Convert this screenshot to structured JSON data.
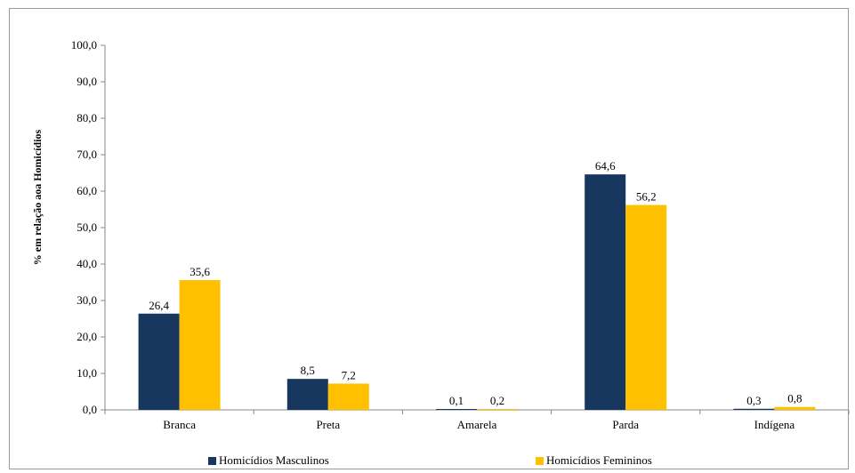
{
  "chart_data": {
    "type": "bar",
    "categories": [
      "Branca",
      "Preta",
      "Amarela",
      "Parda",
      "Indígena"
    ],
    "series": [
      {
        "name": "Homicídios Masculinos",
        "values": [
          26.4,
          8.5,
          0.1,
          64.6,
          0.3
        ],
        "labels": [
          "26,4",
          "8,5",
          "0,1",
          "64,6",
          "0,3"
        ],
        "color": "#17375e"
      },
      {
        "name": "Homicídios Femininos",
        "values": [
          35.6,
          7.2,
          0.2,
          56.2,
          0.8
        ],
        "labels": [
          "35,6",
          "7,2",
          "0,2",
          "56,2",
          "0,8"
        ],
        "color": "#ffc000"
      }
    ],
    "ylabel": "% em relação aoa Homicídios",
    "ylim": [
      0,
      100
    ],
    "yticks": [
      "0,0",
      "10,0",
      "20,0",
      "30,0",
      "40,0",
      "50,0",
      "60,0",
      "70,0",
      "80,0",
      "90,0",
      "100,0"
    ],
    "grid": false,
    "legend_position": "bottom"
  }
}
